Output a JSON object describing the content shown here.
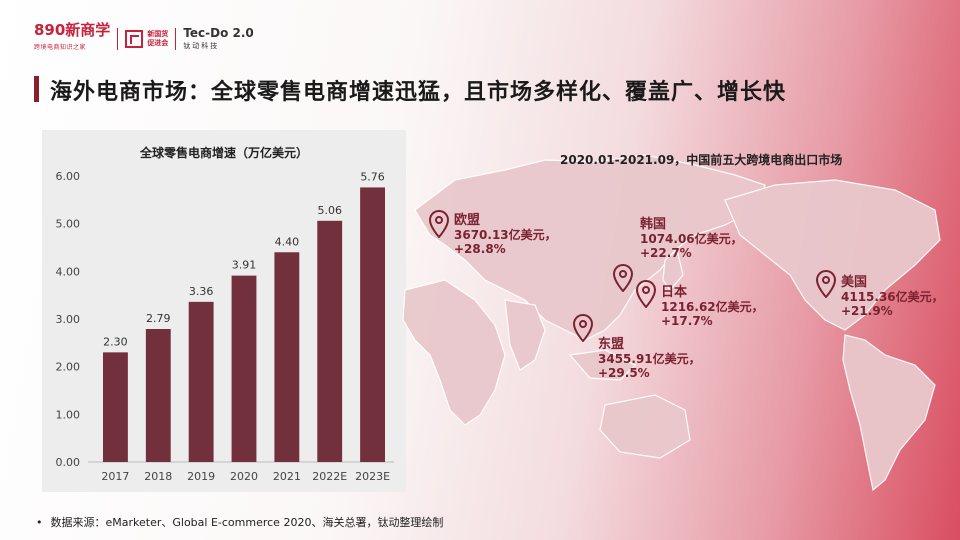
{
  "logos": {
    "brand_main": "890新商学",
    "brand_sub": "跨境电商知识之家",
    "cert_line1": "新国货",
    "cert_line2": "促进会",
    "tecdo_name": "Tec-Do 2.0",
    "tecdo_sub": "钛动科技"
  },
  "slide": {
    "title": "海外电商市场：全球零售电商增速迅猛，且市场多样化、覆盖广、增长快"
  },
  "chart_data": {
    "type": "bar",
    "title": "全球零售电商增速（万亿美元）",
    "categories": [
      "2017",
      "2018",
      "2019",
      "2020",
      "2021",
      "2022E",
      "2023E"
    ],
    "values": [
      2.3,
      2.79,
      3.36,
      3.91,
      4.4,
      5.06,
      5.76
    ],
    "value_labels": [
      "2.30",
      "2.79",
      "3.36",
      "3.91",
      "4.40",
      "5.06",
      "5.76"
    ],
    "ylim": [
      0,
      6
    ],
    "yticks": [
      "0.00",
      "1.00",
      "2.00",
      "3.00",
      "4.00",
      "5.00",
      "6.00"
    ],
    "bar_color": "#722f3c",
    "grid": false,
    "legend": "none"
  },
  "map": {
    "title": "2020.01-2021.09，中国前五大跨境电商出口市场",
    "markers": [
      {
        "name": "欧盟",
        "value": "3670.13亿美元，",
        "growth": "+28.8%"
      },
      {
        "name": "韩国",
        "value": "1074.06亿美元，",
        "growth": "+22.7%"
      },
      {
        "name": "日本",
        "value": "1216.62亿美元，",
        "growth": "+17.7%"
      },
      {
        "name": "东盟",
        "value": "3455.91亿美元，",
        "growth": "+29.5%"
      },
      {
        "name": "美国",
        "value": "4115.36亿美元，",
        "growth": "+21.9%"
      }
    ],
    "accent_color": "#7a2230"
  },
  "footer": {
    "bullet": "•",
    "source": "数据来源：eMarketer、Global E-commerce 2020、海关总署，钛动整理绘制"
  }
}
